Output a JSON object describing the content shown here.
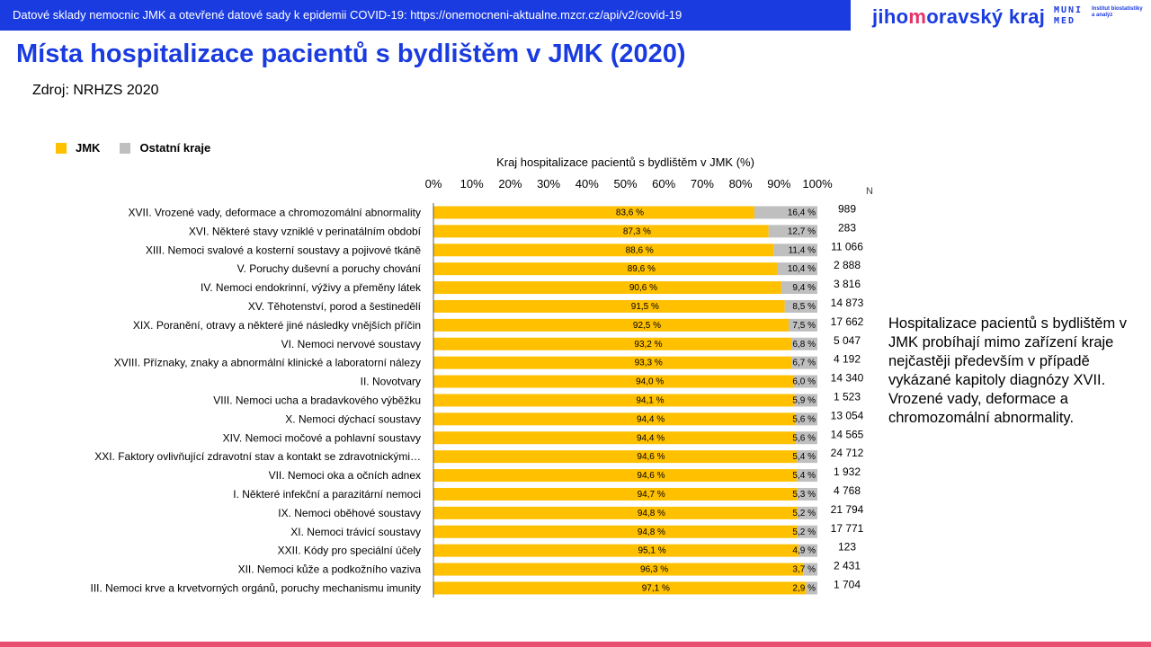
{
  "header": {
    "banner_text": "Datové sklady nemocnic JMK a otevřené datové sady k epidemii COVID-19: https://onemocneni-aktualne.mzcr.cz/api/v2/covid-19",
    "logo_jmk_pre": "jiho",
    "logo_jmk_mid": "m",
    "logo_jmk_post": "oravský kraj",
    "logo_muni_top": "MUNI",
    "logo_muni_bottom": "MED",
    "logo_institute": "Institut biostatistiky a analýz"
  },
  "page_title": "Místa hospitalizace pacientů s bydlištěm v JMK (2020)",
  "source": "Zdroj: NRHZS 2020",
  "note": "Hospitalizace pacientů s bydlištěm v JMK probíhají mimo zařízení kraje nejčastěji především v případě vykázané kapitoly diagnózy XVII. Vrozené vady, deformace a chromozomální abnormality.",
  "colors": {
    "brand_blue": "#1a3be0",
    "accent_pink": "#e8306a",
    "jmk": "#ffc000",
    "other": "#bfbfbf"
  },
  "chart_data": {
    "type": "bar",
    "orientation": "horizontal",
    "stacked": true,
    "title": "Kraj hospitalizace pacientů s bydlištěm v JMK (%)",
    "n_label": "N",
    "xlim": [
      0,
      100
    ],
    "x_ticks": [
      "0%",
      "10%",
      "20%",
      "30%",
      "40%",
      "50%",
      "60%",
      "70%",
      "80%",
      "90%",
      "100%"
    ],
    "legend_position": "top-left",
    "categories": [
      "XVII. Vrozené vady, deformace a chromozomální abnormality",
      "XVI. Některé stavy vzniklé v perinatálním období",
      "XIII. Nemoci svalové a kosterní soustavy a pojivové tkáně",
      "V. Poruchy duševní a poruchy chování",
      "IV. Nemoci endokrinní, výživy a přeměny látek",
      "XV. Těhotenství, porod a šestinedělí",
      "XIX. Poranění, otravy a některé jiné následky vnějších příčin",
      "VI. Nemoci nervové soustavy",
      "XVIII. Příznaky, znaky a abnormální klinické a laboratorní nálezy",
      "II. Novotvary",
      "VIII. Nemoci ucha a bradavkového výběžku",
      "X. Nemoci dýchací soustavy",
      "XIV. Nemoci močové a pohlavní soustavy",
      "XXI. Faktory ovlivňující zdravotní stav a kontakt se zdravotnickými…",
      "VII. Nemoci oka a očních adnex",
      "I. Některé infekční a parazitární nemoci",
      "IX. Nemoci oběhové soustavy",
      "XI. Nemoci trávicí soustavy",
      "XXII. Kódy pro speciální účely",
      "XII. Nemoci kůže a podkožního vaziva",
      "III. Nemoci krve a krvetvorných orgánů, poruchy mechanismu imunity"
    ],
    "series": [
      {
        "name": "JMK",
        "color": "#ffc000",
        "values": [
          83.6,
          87.3,
          88.6,
          89.6,
          90.6,
          91.5,
          92.5,
          93.2,
          93.3,
          94.0,
          94.1,
          94.4,
          94.4,
          94.6,
          94.6,
          94.7,
          94.8,
          94.8,
          95.1,
          96.3,
          97.1
        ],
        "labels": [
          "83,6 %",
          "87,3 %",
          "88,6 %",
          "89,6 %",
          "90,6 %",
          "91,5 %",
          "92,5 %",
          "93,2 %",
          "93,3 %",
          "94,0 %",
          "94,1 %",
          "94,4 %",
          "94,4 %",
          "94,6 %",
          "94,6 %",
          "94,7 %",
          "94,8 %",
          "94,8 %",
          "95,1 %",
          "96,3 %",
          "97,1 %"
        ]
      },
      {
        "name": "Ostatní kraje",
        "color": "#bfbfbf",
        "values": [
          16.4,
          12.7,
          11.4,
          10.4,
          9.4,
          8.5,
          7.5,
          6.8,
          6.7,
          6.0,
          5.9,
          5.6,
          5.6,
          5.4,
          5.4,
          5.3,
          5.2,
          5.2,
          4.9,
          3.7,
          2.9
        ],
        "labels": [
          "16,4 %",
          "12,7 %",
          "11,4 %",
          "10,4 %",
          "9,4 %",
          "8,5 %",
          "7,5 %",
          "6,8 %",
          "6,7 %",
          "6,0 %",
          "5,9 %",
          "5,6 %",
          "5,6 %",
          "5,4 %",
          "5,4 %",
          "5,3 %",
          "5,2 %",
          "5,2 %",
          "4,9 %",
          "3,7 %",
          "2,9 %"
        ]
      }
    ],
    "n_values": [
      "989",
      "283",
      "11 066",
      "2 888",
      "3 816",
      "14 873",
      "17 662",
      "5 047",
      "4 192",
      "14 340",
      "1 523",
      "13 054",
      "14 565",
      "24 712",
      "1 932",
      "4 768",
      "21 794",
      "17 771",
      "123",
      "2 431",
      "1 704"
    ]
  }
}
